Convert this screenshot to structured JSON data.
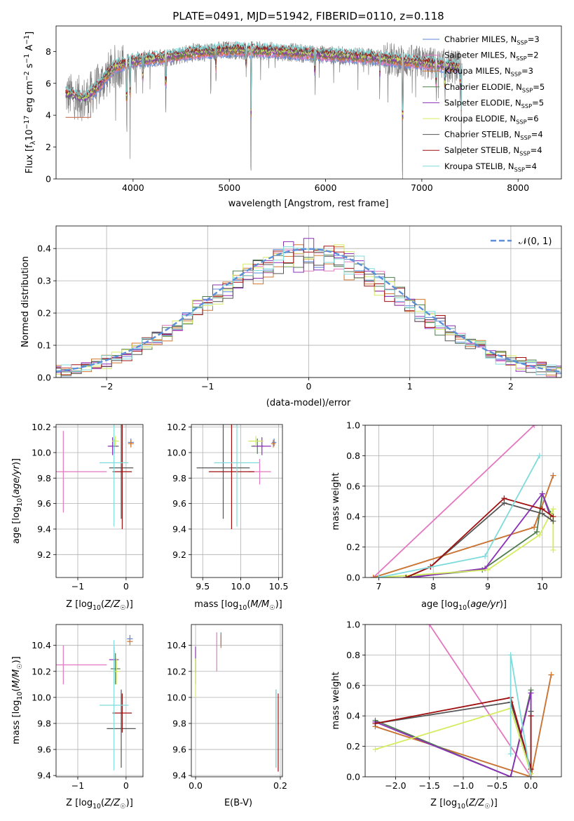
{
  "colors": {
    "Chabrier MILES": "#5b85d9",
    "Salpeter MILES": "#e377c2",
    "Kroupa MILES": "#d2762c",
    "Chabrier ELODIE": "#4f7c4f",
    "Salpeter ELODIE": "#8b2fb8",
    "Kroupa ELODIE": "#d4ec60",
    "Chabrier STELIB": "#555555",
    "Salpeter STELIB": "#a01010",
    "Kroupa STELIB": "#7fdbdb"
  },
  "chart_data": [
    {
      "id": "spectrum",
      "type": "line",
      "title": "PLATE=0491, MJD=51942, FIBERID=0110, z=0.118",
      "xlabel": "wavelength [Angstrom, rest frame]",
      "ylabel": "Flux [f_λ 10^-17 erg cm^-2 s^-1 A^-1]",
      "xlim": [
        3200,
        8450
      ],
      "ylim": [
        0,
        9.6
      ],
      "xticks": [
        4000,
        5000,
        6000,
        7000,
        8000
      ],
      "yticks": [
        0,
        2,
        4,
        6,
        8
      ],
      "grid": false,
      "legend_position": "right",
      "series": [
        {
          "name": "Chabrier MILES, N_SSP=3"
        },
        {
          "name": "Salpeter MILES, N_SSP=2"
        },
        {
          "name": "Kroupa MILES, N_SSP=3"
        },
        {
          "name": "Chabrier ELODIE, N_SSP=5"
        },
        {
          "name": "Salpeter ELODIE, N_SSP=5"
        },
        {
          "name": "Kroupa ELODIE, N_SSP=6"
        },
        {
          "name": "Chabrier STELIB, N_SSP=4"
        },
        {
          "name": "Salpeter STELIB, N_SSP=4"
        },
        {
          "name": "Kroupa STELIB, N_SSP=4"
        }
      ],
      "continuum": [
        [
          3300,
          5.3
        ],
        [
          3500,
          5.0
        ],
        [
          3650,
          5.9
        ],
        [
          3800,
          7.0
        ],
        [
          4000,
          7.4
        ],
        [
          4300,
          7.6
        ],
        [
          4600,
          7.9
        ],
        [
          5000,
          8.1
        ],
        [
          5500,
          8.0
        ],
        [
          6000,
          7.8
        ],
        [
          6500,
          7.6
        ],
        [
          7000,
          7.3
        ],
        [
          7500,
          6.9
        ],
        [
          8000,
          6.5
        ],
        [
          8300,
          6.4
        ]
      ]
    },
    {
      "id": "histogram",
      "type": "bar",
      "xlabel": "(data-model)/error",
      "ylabel": "Normed distribution",
      "xlim": [
        -2.5,
        2.5
      ],
      "ylim": [
        0,
        0.47
      ],
      "xticks": [
        -2,
        -1,
        0,
        1,
        2
      ],
      "yticks": [
        0.0,
        0.1,
        0.2,
        0.3,
        0.4
      ],
      "grid": true,
      "legend": "𝒩(0, 1)",
      "legend_position": "top-right",
      "bin_width": 0.1
    },
    {
      "id": "age_vs_Z",
      "type": "scatter",
      "xlabel": "Z [log10(Z/Z☉)]",
      "ylabel": "age  [log10(age/yr)]",
      "xlim": [
        -1.45,
        0.35
      ],
      "ylim": [
        9.02,
        10.22
      ],
      "xticks": [
        -1,
        0
      ],
      "yticks": [
        9.2,
        9.4,
        9.6,
        9.8,
        10.0,
        10.2
      ],
      "grid": true,
      "points": [
        {
          "model": "Chabrier MILES",
          "x": 0.1,
          "y": 10.08,
          "xerr": 0.06,
          "yerr": 0.03
        },
        {
          "model": "Salpeter MILES",
          "x": -1.3,
          "y": 9.85,
          "xerr": 0.9,
          "yerr": 0.32
        },
        {
          "model": "Kroupa MILES",
          "x": 0.1,
          "y": 10.07,
          "xerr": 0.06,
          "yerr": 0.03
        },
        {
          "model": "Chabrier ELODIE",
          "x": -0.25,
          "y": 10.05,
          "xerr": 0.1,
          "yerr": 0.06
        },
        {
          "model": "Salpeter ELODIE",
          "x": -0.28,
          "y": 10.05,
          "xerr": 0.1,
          "yerr": 0.07
        },
        {
          "model": "Kroupa ELODIE",
          "x": -0.22,
          "y": 10.09,
          "xerr": 0.07,
          "yerr": 0.04
        },
        {
          "model": "Chabrier STELIB",
          "x": -0.1,
          "y": 9.88,
          "xerr": 0.25,
          "yerr": 0.4
        },
        {
          "model": "Salpeter STELIB",
          "x": -0.08,
          "y": 9.85,
          "xerr": 0.2,
          "yerr": 0.45
        },
        {
          "model": "Kroupa STELIB",
          "x": -0.25,
          "y": 9.92,
          "xerr": 0.3,
          "yerr": 0.5
        }
      ]
    },
    {
      "id": "age_vs_mass",
      "type": "scatter",
      "xlabel": "mass [log10(M/M☉)]",
      "ylabel": "",
      "xlim": [
        9.35,
        10.55
      ],
      "ylim": [
        9.02,
        10.22
      ],
      "xticks": [
        9.5,
        10.0,
        10.5
      ],
      "yticks": [
        9.2,
        9.4,
        9.6,
        9.8,
        10.0,
        10.2
      ],
      "grid": true,
      "points": [
        {
          "model": "Chabrier MILES",
          "x": 10.44,
          "y": 10.08,
          "xerr": 0.03,
          "yerr": 0.03
        },
        {
          "model": "Salpeter MILES",
          "x": 10.25,
          "y": 9.85,
          "xerr": 0.15,
          "yerr": 0.1
        },
        {
          "model": "Kroupa MILES",
          "x": 10.43,
          "y": 10.07,
          "xerr": 0.03,
          "yerr": 0.03
        },
        {
          "model": "Chabrier ELODIE",
          "x": 10.22,
          "y": 10.05,
          "xerr": 0.08,
          "yerr": 0.06
        },
        {
          "model": "Salpeter ELODIE",
          "x": 10.28,
          "y": 10.05,
          "xerr": 0.12,
          "yerr": 0.07
        },
        {
          "model": "Kroupa ELODIE",
          "x": 10.2,
          "y": 10.09,
          "xerr": 0.1,
          "yerr": 0.04
        },
        {
          "model": "Chabrier STELIB",
          "x": 9.77,
          "y": 9.88,
          "xerr": 0.35,
          "yerr": 0.4
        },
        {
          "model": "Salpeter STELIB",
          "x": 9.88,
          "y": 9.85,
          "xerr": 0.3,
          "yerr": 0.45
        },
        {
          "model": "Kroupa STELIB",
          "x": 9.95,
          "y": 9.92,
          "xerr": 0.3,
          "yerr": 0.5
        }
      ]
    },
    {
      "id": "weight_vs_age",
      "type": "line",
      "xlabel": "age  [log10(age/yr)]",
      "ylabel": "mass weight",
      "xlim": [
        6.75,
        10.35
      ],
      "ylim": [
        0,
        1.0
      ],
      "xticks": [
        7,
        8,
        9,
        10
      ],
      "yticks": [
        0.0,
        0.2,
        0.4,
        0.6,
        0.8,
        1.0
      ],
      "grid": true,
      "series": [
        {
          "model": "Chabrier MILES",
          "x": [
            6.9,
            9.85,
            10.2
          ],
          "y": [
            0.0,
            0.33,
            0.67
          ]
        },
        {
          "model": "Salpeter MILES",
          "x": [
            6.9,
            9.85
          ],
          "y": [
            0.0,
            1.0
          ]
        },
        {
          "model": "Kroupa MILES",
          "x": [
            6.9,
            9.85,
            10.2
          ],
          "y": [
            0.0,
            0.33,
            0.67
          ]
        },
        {
          "model": "Chabrier ELODIE",
          "x": [
            7.5,
            8.9,
            9.9,
            10.0,
            10.15
          ],
          "y": [
            0.0,
            0.05,
            0.3,
            0.55,
            0.42
          ]
        },
        {
          "model": "Salpeter ELODIE",
          "x": [
            7.6,
            8.95,
            10.0,
            10.15
          ],
          "y": [
            0.0,
            0.06,
            0.55,
            0.4
          ]
        },
        {
          "model": "Kroupa ELODIE",
          "x": [
            7.0,
            9.0,
            9.95,
            10.2,
            10.2
          ],
          "y": [
            0.0,
            0.05,
            0.28,
            0.45,
            0.18
          ]
        },
        {
          "model": "Chabrier STELIB",
          "x": [
            7.5,
            7.95,
            9.3,
            10.0,
            10.2
          ],
          "y": [
            0.0,
            0.07,
            0.49,
            0.42,
            0.37
          ]
        },
        {
          "model": "Salpeter STELIB",
          "x": [
            7.5,
            7.95,
            9.3,
            10.0,
            10.2
          ],
          "y": [
            0.0,
            0.07,
            0.52,
            0.45,
            0.4
          ]
        },
        {
          "model": "Kroupa STELIB",
          "x": [
            7.0,
            8.95,
            9.95
          ],
          "y": [
            0.0,
            0.14,
            0.8
          ]
        }
      ]
    },
    {
      "id": "mass_vs_Z",
      "type": "scatter",
      "xlabel": "Z [log10(Z/Z☉)]",
      "ylabel": "mass [log10(M/M☉)]",
      "xlim": [
        -1.45,
        0.35
      ],
      "ylim": [
        9.39,
        10.56
      ],
      "xticks": [
        -1,
        0
      ],
      "yticks": [
        9.4,
        9.6,
        9.8,
        10.0,
        10.2,
        10.4
      ],
      "grid": true,
      "points": [
        {
          "model": "Chabrier MILES",
          "x": 0.08,
          "y": 10.45,
          "xerr": 0.06,
          "yerr": 0.03
        },
        {
          "model": "Salpeter MILES",
          "x": -1.3,
          "y": 10.25,
          "xerr": 0.9,
          "yerr": 0.15
        },
        {
          "model": "Kroupa MILES",
          "x": 0.08,
          "y": 10.43,
          "xerr": 0.06,
          "yerr": 0.03
        },
        {
          "model": "Chabrier ELODIE",
          "x": -0.22,
          "y": 10.22,
          "xerr": 0.1,
          "yerr": 0.12
        },
        {
          "model": "Salpeter ELODIE",
          "x": -0.25,
          "y": 10.29,
          "xerr": 0.1,
          "yerr": 0.1
        },
        {
          "model": "Kroupa ELODIE",
          "x": -0.2,
          "y": 10.2,
          "xerr": 0.07,
          "yerr": 0.1
        },
        {
          "model": "Chabrier STELIB",
          "x": -0.1,
          "y": 9.76,
          "xerr": 0.3,
          "yerr": 0.3
        },
        {
          "model": "Salpeter STELIB",
          "x": -0.08,
          "y": 9.88,
          "xerr": 0.2,
          "yerr": 0.15
        },
        {
          "model": "Kroupa STELIB",
          "x": -0.25,
          "y": 9.94,
          "xerr": 0.3,
          "yerr": 0.5
        }
      ]
    },
    {
      "id": "mass_vs_ebv",
      "type": "scatter",
      "xlabel": "E(B-V)",
      "ylabel": "",
      "xlim": [
        -0.01,
        0.205
      ],
      "ylim": [
        9.39,
        10.56
      ],
      "xticks": [
        0.0,
        0.2
      ],
      "yticks": [
        9.4,
        9.6,
        9.8,
        10.0,
        10.2,
        10.4
      ],
      "grid": true,
      "points": [
        {
          "model": "Chabrier MILES",
          "x": 0.06,
          "y": 10.45,
          "yerr": 0.05
        },
        {
          "model": "Salpeter MILES",
          "x": 0.05,
          "y": 10.35,
          "yerr": 0.15
        },
        {
          "model": "Kroupa MILES",
          "x": 0.06,
          "y": 10.43,
          "yerr": 0.05
        },
        {
          "model": "Chabrier ELODIE",
          "x": 0.0,
          "y": 10.2,
          "yerr": 0.1
        },
        {
          "model": "Salpeter ELODIE",
          "x": 0.0,
          "y": 10.29,
          "yerr": 0.1
        },
        {
          "model": "Kroupa ELODIE",
          "x": 0.0,
          "y": 10.15,
          "yerr": 0.15
        },
        {
          "model": "Chabrier STELIB",
          "x": 0.19,
          "y": 9.76,
          "yerr": 0.3
        },
        {
          "model": "Salpeter STELIB",
          "x": 0.195,
          "y": 9.73,
          "yerr": 0.3
        },
        {
          "model": "Kroupa STELIB",
          "x": 0.19,
          "y": 9.76,
          "yerr": 0.3
        }
      ]
    },
    {
      "id": "weight_vs_Z",
      "type": "line",
      "xlabel": "Z [log10(Z/Z☉)]",
      "ylabel": "mass weight",
      "xlim": [
        -2.45,
        0.45
      ],
      "ylim": [
        0,
        1.0
      ],
      "xticks": [
        -2.0,
        -1.5,
        -1.0,
        -0.5,
        0.0
      ],
      "yticks": [
        0.0,
        0.2,
        0.4,
        0.6,
        0.8,
        1.0
      ],
      "grid": true,
      "series": [
        {
          "model": "Chabrier MILES",
          "x": [
            -2.3,
            0.0,
            0.3
          ],
          "y": [
            0.33,
            0.0,
            0.67
          ]
        },
        {
          "model": "Salpeter MILES",
          "x": [
            -1.5,
            0.0
          ],
          "y": [
            1.0,
            0.0
          ]
        },
        {
          "model": "Kroupa MILES",
          "x": [
            -2.3,
            0.0,
            0.3
          ],
          "y": [
            0.33,
            0.0,
            0.67
          ]
        },
        {
          "model": "Chabrier ELODIE",
          "x": [
            -2.3,
            -0.3,
            0.0,
            0.0
          ],
          "y": [
            0.37,
            0.0,
            0.57,
            0.43
          ]
        },
        {
          "model": "Salpeter ELODIE",
          "x": [
            -2.3,
            -0.3,
            0.0,
            0.0
          ],
          "y": [
            0.36,
            0.0,
            0.55,
            0.4
          ]
        },
        {
          "model": "Kroupa ELODIE",
          "x": [
            -2.3,
            -0.3,
            0.0
          ],
          "y": [
            0.18,
            0.45,
            0.02
          ]
        },
        {
          "model": "Chabrier STELIB",
          "x": [
            -2.3,
            -0.3,
            0.0,
            0.0
          ],
          "y": [
            0.35,
            0.49,
            0.05,
            0.43
          ]
        },
        {
          "model": "Salpeter STELIB",
          "x": [
            -2.3,
            -0.3,
            0.0,
            0.0
          ],
          "y": [
            0.35,
            0.52,
            0.05,
            0.4
          ]
        },
        {
          "model": "Kroupa STELIB",
          "x": [
            -0.3,
            -0.3,
            0.0
          ],
          "y": [
            0.15,
            0.8,
            0.0
          ]
        }
      ]
    }
  ]
}
